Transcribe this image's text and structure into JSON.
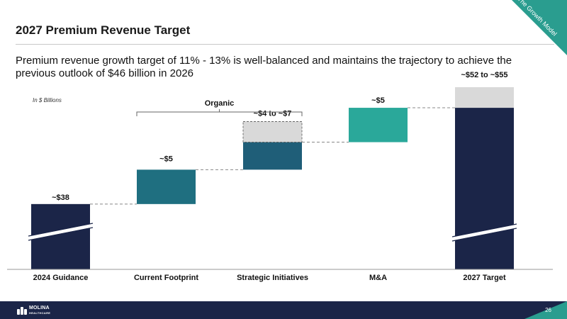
{
  "header": {
    "title": "2027 Premium Revenue Target",
    "corner_badge": "The Growth Model"
  },
  "subtitle": "Premium revenue growth target of 11% - 13% is well-balanced and maintains the trajectory to achieve the previous outlook of $46 billion in 2026",
  "unit_note": "In $ Billions",
  "chart_data": {
    "type": "waterfall",
    "categories": [
      "2024 Guidance",
      "Current Footprint",
      "Strategic Initiatives",
      "M&A",
      "2027 Target"
    ],
    "bars": [
      {
        "category": "2024 Guidance",
        "kind": "total",
        "value": 38,
        "label": "~$38"
      },
      {
        "category": "Current Footprint",
        "kind": "increment",
        "base": 38,
        "value": 5,
        "label": "~$5"
      },
      {
        "category": "Strategic Initiatives",
        "kind": "increment_range",
        "base": 43,
        "low": 4,
        "high": 7,
        "label": "~$4 to ~$7"
      },
      {
        "category": "M&A",
        "kind": "increment",
        "base": 47,
        "value": 5,
        "label": "~$5"
      },
      {
        "category": "2027 Target",
        "kind": "total_range",
        "low": 52,
        "high": 55,
        "label": "~$52 to ~$55"
      }
    ],
    "bracket_label": "Organic",
    "bracket_span": [
      "Current Footprint",
      "Strategic Initiatives"
    ],
    "axis_break": true,
    "colors": {
      "total": "#1b2548",
      "footprint": "#1f6f80",
      "initiatives": "#1f5e78",
      "ma": "#2aa89a",
      "range": "#d9d9d9",
      "connector": "#888888"
    }
  },
  "footer": {
    "logo_text": "MOLINA",
    "logo_sub": "HEALTHCARE",
    "page_number": "26"
  }
}
